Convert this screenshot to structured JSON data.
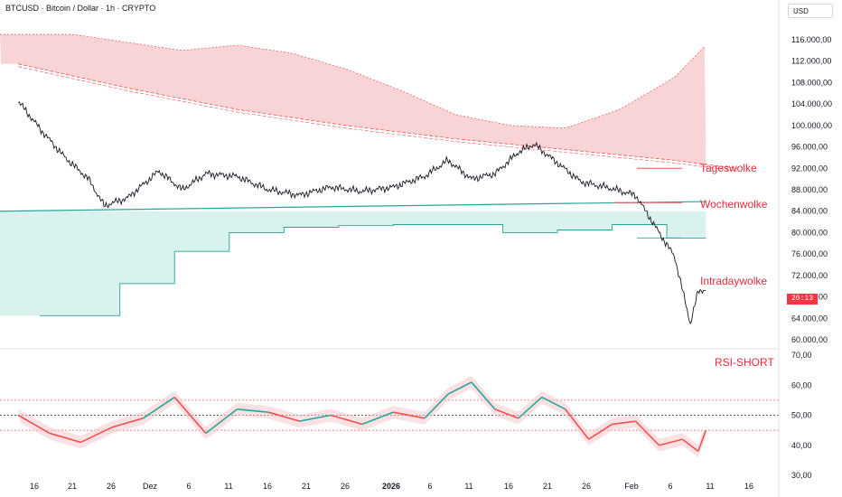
{
  "header": {
    "symbol_title": "BTCUSD · Bitcoin / Dollar · 1h · CRYPTO",
    "currency_button": "USD"
  },
  "price_badge": "20:13",
  "annotations": {
    "tageswolke": "Tageswolke",
    "wochenwolke": "Wochenwolke",
    "intradaywolke": "Intradaywolke",
    "rsi_short": "RSI-SHORT"
  },
  "colors": {
    "bull": "#26a69a",
    "bear": "#ef5350",
    "cloud_red": "#f8c9cc",
    "cloud_green": "#cdeee7",
    "annotation": "#e32b3b",
    "price": "#131722"
  },
  "chart_data": [
    {
      "type": "line",
      "panel": "price",
      "y_ticks": [
        "116.000,00",
        "112.000,00",
        "108.000,00",
        "104.000,00",
        "100.000,00",
        "96.000,00",
        "92.000,00",
        "88.000,00",
        "84.000,00",
        "80.000,00",
        "76.000,00",
        "72.000,00",
        "68.000,00",
        "64.000,00",
        "60.000,00"
      ],
      "ylim": [
        58000,
        118000
      ],
      "x_ticks": [
        "16",
        "21",
        "26",
        "Dez",
        "6",
        "11",
        "16",
        "21",
        "26",
        "2026",
        "6",
        "11",
        "16",
        "21",
        "26",
        "Feb",
        "6",
        "11",
        "16"
      ],
      "series": [
        {
          "role": "price",
          "x": [
            "Nov 11",
            "Nov 14",
            "Nov 17",
            "Nov 20",
            "Nov 22",
            "Nov 25",
            "Nov 29",
            "Dez 2",
            "Dez 5",
            "Dez 9",
            "Dez 13",
            "Dez 17",
            "Dez 21",
            "Dez 25",
            "Dez 29",
            "Jan 2",
            "Jan 5",
            "Jan 8",
            "Jan 11",
            "Jan 14",
            "Jan 16",
            "Jan 19",
            "Jan 22",
            "Jan 26",
            "Jan 29",
            "Feb 1",
            "Feb 3",
            "Feb 5",
            "Feb 6",
            "Feb 7"
          ],
          "values": [
            104500,
            99000,
            94000,
            90000,
            85000,
            86500,
            91500,
            88000,
            91000,
            90500,
            88000,
            87000,
            88500,
            87700,
            88500,
            90500,
            93500,
            90000,
            91000,
            95000,
            96500,
            93000,
            89500,
            88200,
            87000,
            80000,
            75500,
            63000,
            69000,
            69500
          ]
        },
        {
          "role": "upper-cloud-band",
          "x": [
            "Nov 11",
            "Nov 18",
            "Nov 25",
            "Dez 2",
            "Dez 9",
            "Dez 16",
            "Dez 23",
            "Dez 30",
            "Jan 6",
            "Jan 13",
            "Jan 20",
            "Jan 27",
            "Feb 3",
            "Feb 7"
          ],
          "values": [
            117000,
            117000,
            115500,
            114000,
            115000,
            113500,
            110500,
            106500,
            102000,
            100000,
            99500,
            103000,
            109000,
            115000
          ]
        },
        {
          "role": "dashed-moving-average",
          "x": [
            "Nov 11",
            "Nov 25",
            "Dez 9",
            "Dez 23",
            "Jan 6",
            "Jan 20",
            "Feb 3",
            "Feb 11"
          ],
          "values": [
            111500,
            107000,
            103000,
            100000,
            97500,
            95500,
            93500,
            92000
          ]
        },
        {
          "role": "weekly-cloud-lower-step",
          "x": [
            "Nov 11",
            "Nov 17",
            "Nov 24",
            "Dez 1",
            "Dez 8",
            "Dez 15",
            "Dez 22",
            "Dez 29",
            "Jan 5",
            "Jan 12",
            "Jan 19",
            "Jan 26",
            "Feb 2",
            "Feb 7"
          ],
          "values": [
            64500,
            64500,
            70500,
            76500,
            80000,
            81000,
            81300,
            81500,
            81500,
            80000,
            80500,
            81500,
            79000,
            79000
          ]
        }
      ]
    },
    {
      "type": "line",
      "panel": "rsi",
      "y_ticks": [
        "70,00",
        "60,00",
        "50,00",
        "40,00",
        "30,00"
      ],
      "ylim": [
        28,
        72
      ],
      "reference_lines": [
        55,
        50,
        45
      ],
      "series": [
        {
          "role": "rsi",
          "x": [
            "Nov 11",
            "Nov 15",
            "Nov 19",
            "Nov 23",
            "Nov 27",
            "Dez 1",
            "Dez 5",
            "Dez 9",
            "Dez 13",
            "Dez 17",
            "Dez 21",
            "Dez 25",
            "Dez 29",
            "Jan 2",
            "Jan 5",
            "Jan 8",
            "Jan 11",
            "Jan 14",
            "Jan 17",
            "Jan 20",
            "Jan 23",
            "Jan 26",
            "Jan 29",
            "Feb 1",
            "Feb 4",
            "Feb 6",
            "Feb 7"
          ],
          "values": [
            50,
            44,
            41,
            46,
            49,
            56,
            44,
            52,
            51,
            48,
            50,
            47,
            51,
            49,
            57,
            61,
            52,
            49,
            56,
            52,
            42,
            47,
            48,
            40,
            42,
            38,
            45
          ]
        }
      ]
    }
  ]
}
